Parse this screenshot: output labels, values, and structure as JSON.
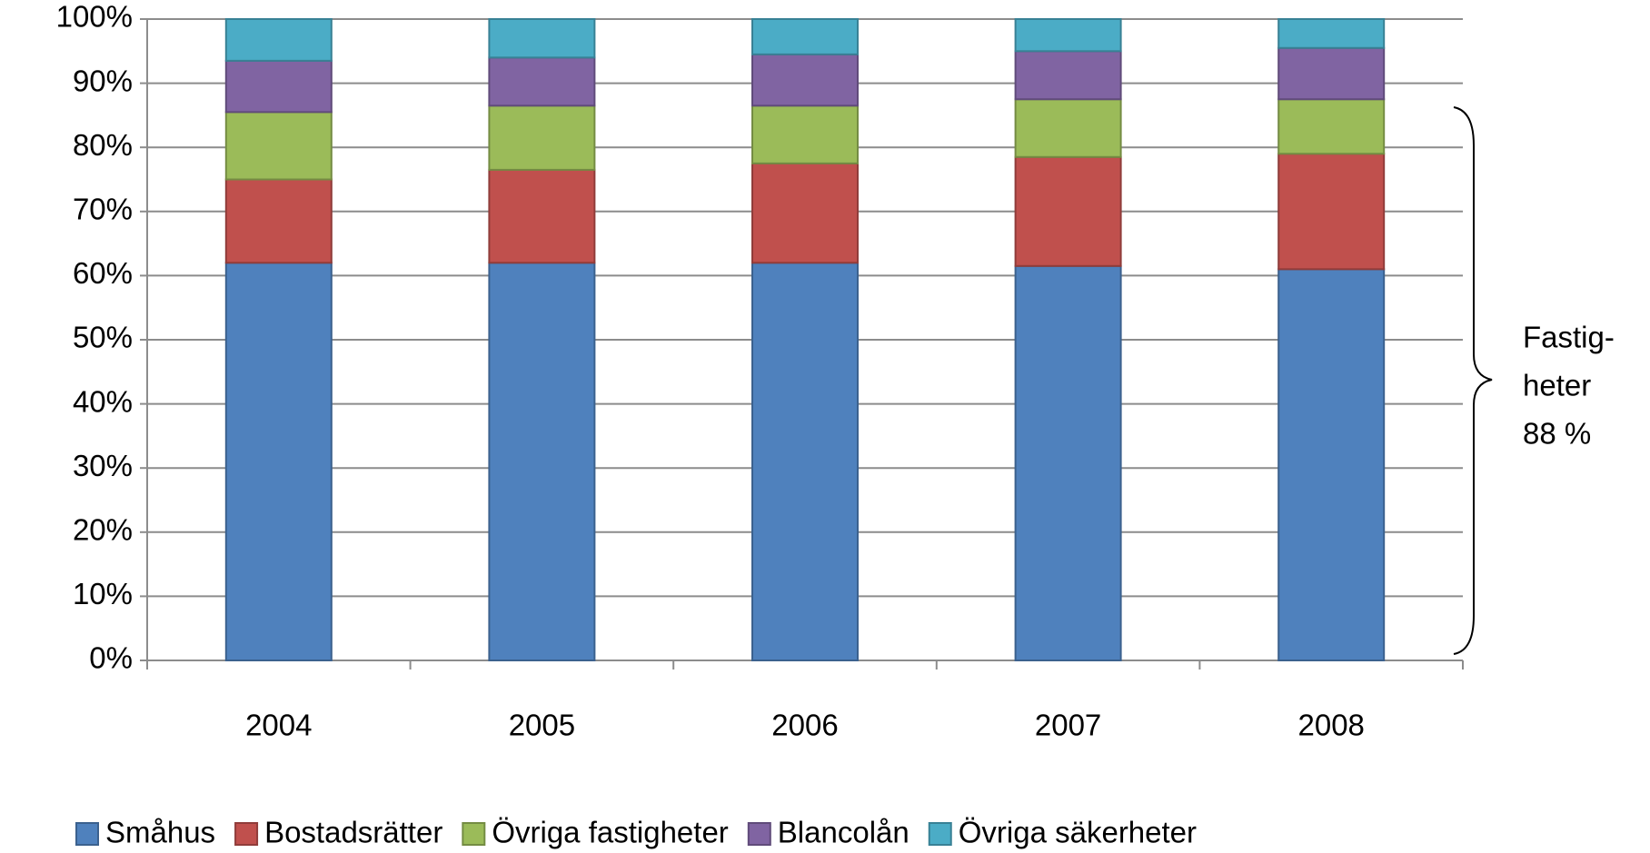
{
  "chart_data": {
    "type": "stacked_bar",
    "categories": [
      "2004",
      "2005",
      "2006",
      "2007",
      "2008"
    ],
    "series": [
      {
        "name": "Småhus",
        "color": "#4f81bd",
        "values": [
          62,
          62,
          62,
          61.5,
          61
        ]
      },
      {
        "name": "Bostadsrätter",
        "color": "#c0504d",
        "values": [
          13,
          14.5,
          15.5,
          17,
          18
        ]
      },
      {
        "name": "Övriga fastigheter",
        "color": "#9bbb59",
        "values": [
          10.5,
          10,
          9,
          9,
          8.5
        ]
      },
      {
        "name": "Blancolån",
        "color": "#8064a2",
        "values": [
          8,
          7.5,
          8,
          7.5,
          8
        ]
      },
      {
        "name": "Övriga säkerheter",
        "color": "#4bacc6",
        "values": [
          6.5,
          6,
          5.5,
          5,
          4.5
        ]
      }
    ],
    "ylim": [
      0,
      100
    ],
    "yticks": [
      {
        "value": 0,
        "label": "0%"
      },
      {
        "value": 10,
        "label": "10%"
      },
      {
        "value": 20,
        "label": "20%"
      },
      {
        "value": 30,
        "label": "30%"
      },
      {
        "value": 40,
        "label": "40%"
      },
      {
        "value": 50,
        "label": "50%"
      },
      {
        "value": 60,
        "label": "60%"
      },
      {
        "value": 70,
        "label": "70%"
      },
      {
        "value": 80,
        "label": "80%"
      },
      {
        "value": 90,
        "label": "90%"
      },
      {
        "value": 100,
        "label": "100%"
      }
    ],
    "grid": true,
    "annotation": [
      "Fastig-",
      "heter",
      "88 %"
    ]
  }
}
